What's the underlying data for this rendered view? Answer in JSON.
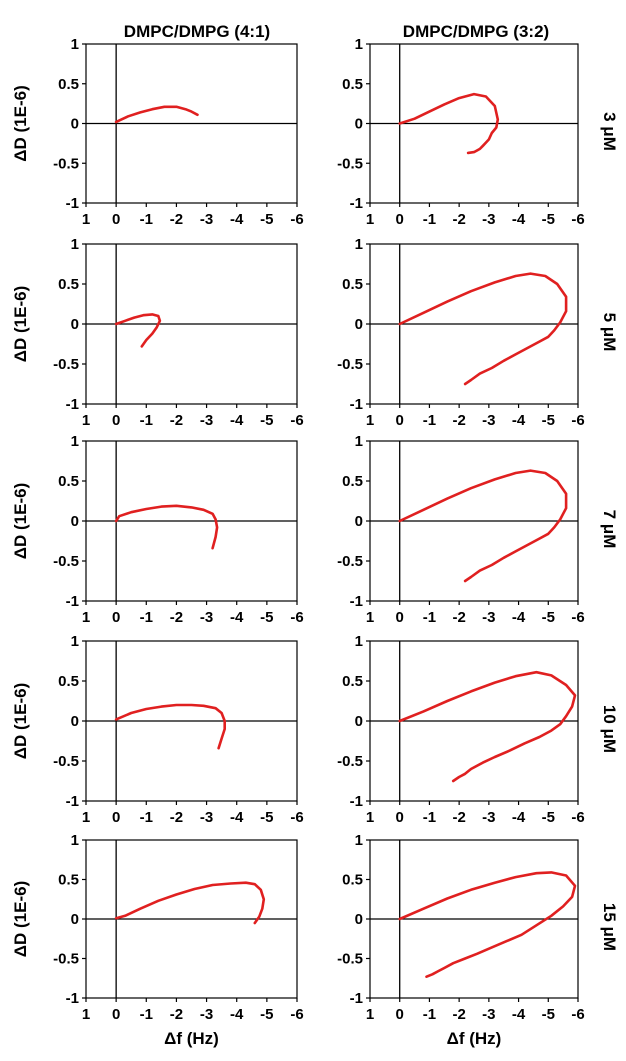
{
  "figure": {
    "column_titles": [
      "DMPC/DMPG (4:1)",
      "DMPC/DMPG (3:2)"
    ],
    "row_labels": [
      "3 μM",
      "5 μM",
      "7 μM",
      "10 μM",
      "15 μM"
    ],
    "ylabel": "ΔD (1E-6)",
    "xlabel": "Δf (Hz)",
    "series_color": "#e02020"
  },
  "chart_data": [
    {
      "type": "line",
      "row_label": "3 μM",
      "column_title": "DMPC/DMPG (4:1)",
      "xlabel": "",
      "ylabel": "ΔD (1E-6)",
      "xlim": [
        1,
        -6
      ],
      "ylim": [
        -1,
        1
      ],
      "xticks": [
        1,
        0,
        -1,
        -2,
        -3,
        -4,
        -5,
        -6
      ],
      "yticks": [
        -1,
        -0.5,
        0,
        0.5,
        1
      ],
      "series": [
        {
          "name": "4:1 3 μM",
          "x": [
            0,
            -0.4,
            -0.8,
            -1.2,
            -1.6,
            -2.0,
            -2.3,
            -2.5,
            -2.7
          ],
          "y": [
            0.02,
            0.09,
            0.14,
            0.18,
            0.21,
            0.21,
            0.18,
            0.15,
            0.11
          ]
        }
      ]
    },
    {
      "type": "line",
      "row_label": "3 μM",
      "column_title": "DMPC/DMPG (3:2)",
      "xlabel": "",
      "ylabel": "",
      "xlim": [
        1,
        -6
      ],
      "ylim": [
        -1,
        1
      ],
      "xticks": [
        1,
        0,
        -1,
        -2,
        -3,
        -4,
        -5,
        -6
      ],
      "yticks": [
        -1,
        -0.5,
        0,
        0.5,
        1
      ],
      "series": [
        {
          "name": "3:2 3 μM",
          "x": [
            0,
            -0.5,
            -1.0,
            -1.5,
            -2.0,
            -2.5,
            -2.9,
            -3.2,
            -3.3,
            -3.25,
            -3.1,
            -3.0,
            -2.9,
            -2.8,
            -2.7,
            -2.6,
            -2.5,
            -2.3
          ],
          "y": [
            0,
            0.06,
            0.15,
            0.24,
            0.32,
            0.37,
            0.34,
            0.22,
            0.05,
            -0.05,
            -0.12,
            -0.2,
            -0.24,
            -0.28,
            -0.32,
            -0.34,
            -0.36,
            -0.37
          ]
        }
      ]
    },
    {
      "type": "line",
      "row_label": "5 μM",
      "column_title": "DMPC/DMPG (4:1)",
      "xlabel": "",
      "ylabel": "ΔD (1E-6)",
      "xlim": [
        1,
        -6
      ],
      "ylim": [
        -1,
        1
      ],
      "xticks": [
        1,
        0,
        -1,
        -2,
        -3,
        -4,
        -5,
        -6
      ],
      "yticks": [
        -1,
        -0.5,
        0,
        0.5,
        1
      ],
      "series": [
        {
          "name": "4:1 5 μM",
          "x": [
            0,
            -0.3,
            -0.6,
            -0.9,
            -1.2,
            -1.4,
            -1.45,
            -1.35,
            -1.2,
            -1.0,
            -0.85
          ],
          "y": [
            0,
            0.04,
            0.08,
            0.11,
            0.12,
            0.1,
            0.04,
            -0.04,
            -0.12,
            -0.2,
            -0.28
          ]
        }
      ]
    },
    {
      "type": "line",
      "row_label": "5 μM",
      "column_title": "DMPC/DMPG (3:2)",
      "xlabel": "",
      "ylabel": "",
      "xlim": [
        1,
        -6
      ],
      "ylim": [
        -1,
        1
      ],
      "xticks": [
        1,
        0,
        -1,
        -2,
        -3,
        -4,
        -5,
        -6
      ],
      "yticks": [
        -1,
        -0.5,
        0,
        0.5,
        1
      ],
      "series": [
        {
          "name": "3:2 5 μM",
          "x": [
            0,
            -0.8,
            -1.6,
            -2.4,
            -3.2,
            -3.9,
            -4.4,
            -4.9,
            -5.3,
            -5.6,
            -5.6,
            -5.4,
            -5.2,
            -5.0,
            -4.7,
            -4.3,
            -3.9,
            -3.5,
            -3.1,
            -2.7,
            -2.4,
            -2.2
          ],
          "y": [
            0,
            0.14,
            0.28,
            0.41,
            0.52,
            0.6,
            0.63,
            0.6,
            0.5,
            0.34,
            0.16,
            0.02,
            -0.08,
            -0.16,
            -0.22,
            -0.3,
            -0.38,
            -0.46,
            -0.55,
            -0.62,
            -0.7,
            -0.75
          ]
        }
      ]
    },
    {
      "type": "line",
      "row_label": "7 μM",
      "column_title": "DMPC/DMPG (4:1)",
      "xlabel": "",
      "ylabel": "ΔD (1E-6)",
      "xlim": [
        1,
        -6
      ],
      "ylim": [
        -1,
        1
      ],
      "xticks": [
        1,
        0,
        -1,
        -2,
        -3,
        -4,
        -5,
        -6
      ],
      "yticks": [
        -1,
        -0.5,
        0,
        0.5,
        1
      ],
      "series": [
        {
          "name": "4:1 7 μM",
          "x": [
            0,
            -0.1,
            -0.5,
            -1.0,
            -1.5,
            -2.0,
            -2.5,
            -2.9,
            -3.2,
            -3.3,
            -3.35,
            -3.3,
            -3.2
          ],
          "y": [
            0,
            0.06,
            0.11,
            0.15,
            0.18,
            0.19,
            0.17,
            0.14,
            0.09,
            0.02,
            -0.08,
            -0.2,
            -0.34
          ]
        }
      ]
    },
    {
      "type": "line",
      "row_label": "7 μM",
      "column_title": "DMPC/DMPG (3:2)",
      "xlabel": "",
      "ylabel": "",
      "xlim": [
        1,
        -6
      ],
      "ylim": [
        -1,
        1
      ],
      "xticks": [
        1,
        0,
        -1,
        -2,
        -3,
        -4,
        -5,
        -6
      ],
      "yticks": [
        -1,
        -0.5,
        0,
        0.5,
        1
      ],
      "series": [
        {
          "name": "3:2 7 μM",
          "x": [
            0,
            -0.8,
            -1.6,
            -2.4,
            -3.2,
            -3.9,
            -4.4,
            -4.9,
            -5.3,
            -5.6,
            -5.6,
            -5.4,
            -5.2,
            -5.0,
            -4.7,
            -4.3,
            -3.9,
            -3.5,
            -3.1,
            -2.7,
            -2.4,
            -2.2
          ],
          "y": [
            0,
            0.14,
            0.28,
            0.41,
            0.52,
            0.6,
            0.63,
            0.6,
            0.5,
            0.34,
            0.16,
            0.02,
            -0.08,
            -0.16,
            -0.22,
            -0.3,
            -0.38,
            -0.46,
            -0.55,
            -0.62,
            -0.7,
            -0.75
          ]
        }
      ]
    },
    {
      "type": "line",
      "row_label": "10 μM",
      "column_title": "DMPC/DMPG (4:1)",
      "xlabel": "",
      "ylabel": "ΔD (1E-6)",
      "xlim": [
        1,
        -6
      ],
      "ylim": [
        -1,
        1
      ],
      "xticks": [
        1,
        0,
        -1,
        -2,
        -3,
        -4,
        -5,
        -6
      ],
      "yticks": [
        -1,
        -0.5,
        0,
        0.5,
        1
      ],
      "series": [
        {
          "name": "4:1 10 μM",
          "x": [
            0,
            -0.5,
            -1.0,
            -1.5,
            -2.0,
            -2.5,
            -2.9,
            -3.3,
            -3.5,
            -3.6,
            -3.6,
            -3.5,
            -3.4
          ],
          "y": [
            0.02,
            0.1,
            0.15,
            0.18,
            0.2,
            0.2,
            0.19,
            0.16,
            0.1,
            0.0,
            -0.1,
            -0.22,
            -0.34
          ]
        }
      ]
    },
    {
      "type": "line",
      "row_label": "10 μM",
      "column_title": "DMPC/DMPG (3:2)",
      "xlabel": "",
      "ylabel": "",
      "xlim": [
        1,
        -6
      ],
      "ylim": [
        -1,
        1
      ],
      "xticks": [
        1,
        0,
        -1,
        -2,
        -3,
        -4,
        -5,
        -6
      ],
      "yticks": [
        -1,
        -0.5,
        0,
        0.5,
        1
      ],
      "series": [
        {
          "name": "3:2 10 μM",
          "x": [
            0,
            -0.8,
            -1.6,
            -2.4,
            -3.2,
            -3.9,
            -4.6,
            -5.1,
            -5.6,
            -5.9,
            -5.8,
            -5.6,
            -5.4,
            -5.1,
            -4.7,
            -4.2,
            -3.7,
            -3.2,
            -2.8,
            -2.4,
            -2.2,
            -2.0,
            -1.8
          ],
          "y": [
            0,
            0.12,
            0.25,
            0.37,
            0.48,
            0.56,
            0.61,
            0.57,
            0.45,
            0.32,
            0.18,
            0.06,
            -0.04,
            -0.12,
            -0.2,
            -0.28,
            -0.37,
            -0.45,
            -0.52,
            -0.6,
            -0.66,
            -0.7,
            -0.75
          ]
        }
      ]
    },
    {
      "type": "line",
      "row_label": "15 μM",
      "column_title": "DMPC/DMPG (4:1)",
      "xlabel": "Δf (Hz)",
      "ylabel": "ΔD (1E-6)",
      "xlim": [
        1,
        -6
      ],
      "ylim": [
        -1,
        1
      ],
      "xticks": [
        1,
        0,
        -1,
        -2,
        -3,
        -4,
        -5,
        -6
      ],
      "yticks": [
        -1,
        -0.5,
        0,
        0.5,
        1
      ],
      "series": [
        {
          "name": "4:1 15 μM",
          "x": [
            0,
            -0.3,
            -0.8,
            -1.4,
            -2.0,
            -2.6,
            -3.2,
            -3.8,
            -4.3,
            -4.6,
            -4.8,
            -4.9,
            -4.85,
            -4.75,
            -4.6
          ],
          "y": [
            0.01,
            0.04,
            0.13,
            0.23,
            0.31,
            0.38,
            0.43,
            0.45,
            0.46,
            0.44,
            0.37,
            0.25,
            0.13,
            0.03,
            -0.05
          ]
        }
      ]
    },
    {
      "type": "line",
      "row_label": "15 μM",
      "column_title": "DMPC/DMPG (3:2)",
      "xlabel": "Δf (Hz)",
      "ylabel": "",
      "xlim": [
        1,
        -6
      ],
      "ylim": [
        -1,
        1
      ],
      "xticks": [
        1,
        0,
        -1,
        -2,
        -3,
        -4,
        -5,
        -6
      ],
      "yticks": [
        -1,
        -0.5,
        0,
        0.5,
        1
      ],
      "series": [
        {
          "name": "3:2 15 μM",
          "x": [
            0,
            -0.8,
            -1.6,
            -2.4,
            -3.2,
            -3.9,
            -4.6,
            -5.1,
            -5.6,
            -5.9,
            -5.8,
            -5.5,
            -5.1,
            -4.6,
            -4.1,
            -3.6,
            -3.1,
            -2.6,
            -2.2,
            -1.8,
            -1.5,
            -1.3,
            -1.1,
            -0.9
          ],
          "y": [
            0,
            0.13,
            0.26,
            0.37,
            0.46,
            0.53,
            0.58,
            0.59,
            0.55,
            0.42,
            0.28,
            0.16,
            0.04,
            -0.08,
            -0.2,
            -0.28,
            -0.36,
            -0.44,
            -0.5,
            -0.56,
            -0.62,
            -0.66,
            -0.7,
            -0.73
          ]
        }
      ]
    }
  ]
}
